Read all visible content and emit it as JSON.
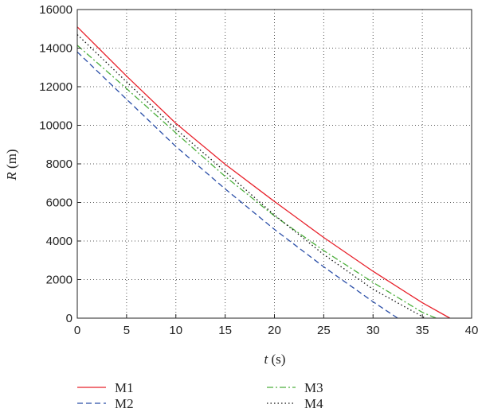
{
  "chart_data": {
    "type": "line",
    "xlabel": {
      "var": "t",
      "unit": " (s)"
    },
    "ylabel": {
      "var": "R",
      "unit": " (m)"
    },
    "xlim": [
      0,
      40
    ],
    "ylim": [
      0,
      16000
    ],
    "xticks": [
      0,
      5,
      10,
      15,
      20,
      25,
      30,
      35,
      40
    ],
    "yticks": [
      0,
      2000,
      4000,
      6000,
      8000,
      10000,
      12000,
      14000,
      16000
    ],
    "grid": true,
    "legend_position": "bottom",
    "series": [
      {
        "name": "M1",
        "color": "#e8202a",
        "dash": "solid",
        "x": [
          0,
          5,
          10,
          15,
          20,
          25,
          30,
          35,
          37.8
        ],
        "y": [
          15100,
          12550,
          10100,
          7980,
          6050,
          4180,
          2430,
          800,
          0
        ]
      },
      {
        "name": "M2",
        "color": "#2b4fa8",
        "dash": "dashed",
        "x": [
          0,
          5,
          10,
          15,
          20,
          25,
          30,
          32.5
        ],
        "y": [
          13800,
          11350,
          8900,
          6700,
          4600,
          2660,
          850,
          0
        ]
      },
      {
        "name": "M3",
        "color": "#4caf3c",
        "dash": "dashdot",
        "x": [
          0,
          5,
          10,
          15,
          20,
          25,
          30,
          35,
          36.4
        ],
        "y": [
          14150,
          11900,
          9600,
          7350,
          5300,
          3500,
          1850,
          300,
          0
        ]
      },
      {
        "name": "M4",
        "color": "#111111",
        "dash": "dotted",
        "x": [
          0,
          5,
          10,
          15,
          20,
          25,
          30,
          35.3
        ],
        "y": [
          14700,
          12250,
          9800,
          7600,
          5350,
          3300,
          1500,
          0
        ]
      }
    ]
  }
}
